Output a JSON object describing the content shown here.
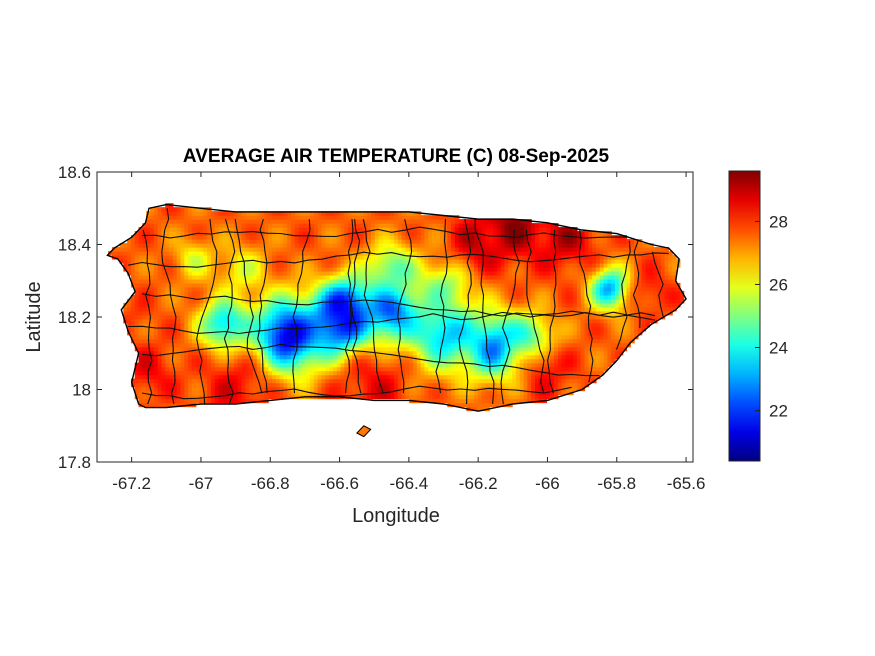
{
  "chart_data": {
    "type": "heatmap",
    "title": "AVERAGE AIR TEMPERATURE (C) 08-Sep-2025",
    "xlabel": "Longitude",
    "ylabel": "Latitude",
    "xlim": [
      -67.3,
      -65.58
    ],
    "ylim": [
      17.8,
      18.6
    ],
    "x_ticks": [
      -67.2,
      -67,
      -66.8,
      -66.6,
      -66.4,
      -66.2,
      -66,
      -65.8,
      -65.6
    ],
    "x_tick_labels": [
      "-67.2",
      "-67",
      "-66.8",
      "-66.6",
      "-66.4",
      "-66.2",
      "-66",
      "-65.8",
      "-65.6"
    ],
    "y_ticks": [
      17.8,
      18,
      18.2,
      18.4,
      18.6
    ],
    "y_tick_labels": [
      "17.8",
      "18",
      "18.2",
      "18.4",
      "18.6"
    ],
    "colorbar": {
      "colormap": "jet",
      "range": [
        20.4,
        29.6
      ],
      "ticks": [
        22,
        24,
        26,
        28
      ],
      "tick_labels": [
        "22",
        "24",
        "26",
        "28"
      ]
    },
    "region_outline": [
      [
        -67.27,
        18.37
      ],
      [
        -67.24,
        18.36
      ],
      [
        -67.21,
        18.32
      ],
      [
        -67.19,
        18.27
      ],
      [
        -67.23,
        18.22
      ],
      [
        -67.21,
        18.16
      ],
      [
        -67.18,
        18.1
      ],
      [
        -67.2,
        18.02
      ],
      [
        -67.18,
        17.96
      ],
      [
        -67.16,
        17.95
      ],
      [
        -67.1,
        17.95
      ],
      [
        -67.0,
        17.96
      ],
      [
        -66.9,
        17.96
      ],
      [
        -66.8,
        17.97
      ],
      [
        -66.7,
        17.98
      ],
      [
        -66.6,
        17.98
      ],
      [
        -66.5,
        17.97
      ],
      [
        -66.4,
        17.97
      ],
      [
        -66.3,
        17.96
      ],
      [
        -66.2,
        17.94
      ],
      [
        -66.1,
        17.96
      ],
      [
        -66.0,
        17.97
      ],
      [
        -65.9,
        18.0
      ],
      [
        -65.84,
        18.04
      ],
      [
        -65.8,
        18.08
      ],
      [
        -65.76,
        18.13
      ],
      [
        -65.7,
        18.18
      ],
      [
        -65.63,
        18.22
      ],
      [
        -65.6,
        18.25
      ],
      [
        -65.63,
        18.3
      ],
      [
        -65.62,
        18.36
      ],
      [
        -65.65,
        18.39
      ],
      [
        -65.7,
        18.4
      ],
      [
        -65.8,
        18.43
      ],
      [
        -65.9,
        18.44
      ],
      [
        -66.0,
        18.46
      ],
      [
        -66.1,
        18.47
      ],
      [
        -66.2,
        18.47
      ],
      [
        -66.3,
        18.48
      ],
      [
        -66.4,
        18.49
      ],
      [
        -66.5,
        18.49
      ],
      [
        -66.6,
        18.49
      ],
      [
        -66.7,
        18.49
      ],
      [
        -66.8,
        18.49
      ],
      [
        -66.9,
        18.49
      ],
      [
        -67.0,
        18.5
      ],
      [
        -67.1,
        18.51
      ],
      [
        -67.15,
        18.5
      ],
      [
        -67.16,
        18.46
      ],
      [
        -67.2,
        18.42
      ],
      [
        -67.25,
        18.39
      ]
    ],
    "islands": [
      [
        [
          -66.55,
          17.88
        ],
        [
          -66.53,
          17.87
        ],
        [
          -66.51,
          17.89
        ],
        [
          -66.53,
          17.9
        ]
      ]
    ],
    "temperature_anchors": [
      {
        "lon": -66.75,
        "lat": 18.15,
        "temp": 21.0,
        "spread": 0.07
      },
      {
        "lon": -66.58,
        "lat": 18.23,
        "temp": 21.3,
        "spread": 0.05
      },
      {
        "lon": -66.6,
        "lat": 18.18,
        "temp": 21.5,
        "spread": 0.06
      },
      {
        "lon": -66.45,
        "lat": 18.22,
        "temp": 22.0,
        "spread": 0.06
      },
      {
        "lon": -66.3,
        "lat": 18.16,
        "temp": 23.2,
        "spread": 0.07
      },
      {
        "lon": -66.15,
        "lat": 18.12,
        "temp": 22.5,
        "spread": 0.06
      },
      {
        "lon": -66.05,
        "lat": 18.13,
        "temp": 23.5,
        "spread": 0.05
      },
      {
        "lon": -66.93,
        "lat": 18.18,
        "temp": 23.2,
        "spread": 0.05
      },
      {
        "lon": -65.82,
        "lat": 18.28,
        "temp": 23.0,
        "spread": 0.04
      },
      {
        "lon": -66.45,
        "lat": 18.33,
        "temp": 24.5,
        "spread": 0.05
      },
      {
        "lon": -66.3,
        "lat": 18.28,
        "temp": 25.0,
        "spread": 0.05
      },
      {
        "lon": -66.88,
        "lat": 18.33,
        "temp": 26.0,
        "spread": 0.05
      },
      {
        "lon": -67.02,
        "lat": 18.36,
        "temp": 26.0,
        "spread": 0.04
      },
      {
        "lon": -66.1,
        "lat": 18.45,
        "temp": 29.5,
        "spread": 0.06
      },
      {
        "lon": -65.95,
        "lat": 18.42,
        "temp": 29.0,
        "spread": 0.06
      },
      {
        "lon": -66.2,
        "lat": 18.41,
        "temp": 29.0,
        "spread": 0.05
      },
      {
        "lon": -66.5,
        "lat": 18.0,
        "temp": 28.5,
        "spread": 0.07
      },
      {
        "lon": -66.9,
        "lat": 18.0,
        "temp": 28.5,
        "spread": 0.07
      },
      {
        "lon": -67.15,
        "lat": 18.05,
        "temp": 28.5,
        "spread": 0.05
      },
      {
        "lon": -66.0,
        "lat": 18.05,
        "temp": 28.3,
        "spread": 0.06
      },
      {
        "lon": -65.7,
        "lat": 18.27,
        "temp": 28.3,
        "spread": 0.04
      },
      {
        "lon": -67.18,
        "lat": 18.2,
        "temp": 28.0,
        "spread": 0.03
      }
    ],
    "base_temperature": 27.6
  }
}
